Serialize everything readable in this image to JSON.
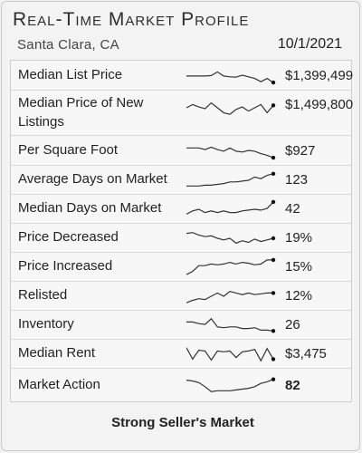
{
  "header": {
    "title": "Real-Time Market Profile",
    "location": "Santa Clara, CA",
    "date": "10/1/2021"
  },
  "rows": [
    {
      "label": "Median List Price",
      "value": "$1,399,499",
      "trend": [
        0.55,
        0.55,
        0.55,
        0.55,
        0.52,
        0.3,
        0.55,
        0.6,
        0.62,
        0.5,
        0.6,
        0.7,
        0.9,
        0.7,
        0.95
      ]
    },
    {
      "label": "Median Price of New Listings",
      "value": "$1,499,800",
      "trend": [
        0.5,
        0.3,
        0.45,
        0.55,
        0.2,
        0.5,
        0.8,
        0.9,
        0.6,
        0.45,
        0.7,
        0.5,
        0.3,
        0.8,
        0.35
      ]
    },
    {
      "label": "Per Square Foot",
      "value": "$927",
      "trend": [
        0.35,
        0.35,
        0.35,
        0.45,
        0.3,
        0.45,
        0.55,
        0.35,
        0.55,
        0.6,
        0.5,
        0.55,
        0.7,
        0.8,
        0.95
      ]
    },
    {
      "label": "Average Days on Market",
      "value": "123",
      "trend": [
        0.85,
        0.85,
        0.85,
        0.8,
        0.8,
        0.75,
        0.7,
        0.6,
        0.6,
        0.55,
        0.5,
        0.3,
        0.4,
        0.2,
        0.1
      ]
    },
    {
      "label": "Median Days on Market",
      "value": "42",
      "trend": [
        0.8,
        0.6,
        0.5,
        0.7,
        0.6,
        0.7,
        0.6,
        0.7,
        0.7,
        0.6,
        0.55,
        0.5,
        0.55,
        0.45,
        0.05
      ]
    },
    {
      "label": "Price Decreased",
      "value": "19%",
      "trend": [
        0.2,
        0.15,
        0.3,
        0.4,
        0.35,
        0.5,
        0.6,
        0.5,
        0.8,
        0.65,
        0.75,
        0.55,
        0.7,
        0.6,
        0.5
      ]
    },
    {
      "label": "Price Increased",
      "value": "15%",
      "trend": [
        0.95,
        0.75,
        0.4,
        0.4,
        0.3,
        0.35,
        0.3,
        0.2,
        0.3,
        0.2,
        0.25,
        0.35,
        0.3,
        0.05,
        0.05
      ]
    },
    {
      "label": "Relisted",
      "value": "12%",
      "trend": [
        0.9,
        0.75,
        0.65,
        0.7,
        0.5,
        0.3,
        0.5,
        0.2,
        0.3,
        0.4,
        0.3,
        0.4,
        0.35,
        0.3,
        0.3
      ]
    },
    {
      "label": "Inventory",
      "value": "26",
      "trend": [
        0.3,
        0.3,
        0.4,
        0.45,
        0.1,
        0.6,
        0.65,
        0.6,
        0.6,
        0.7,
        0.7,
        0.65,
        0.8,
        0.8,
        0.85
      ]
    },
    {
      "label": "Median Rent",
      "value": "$3,475",
      "trend": [
        0.1,
        0.8,
        0.25,
        0.3,
        0.85,
        0.3,
        0.35,
        0.3,
        0.7,
        0.35,
        0.3,
        0.2,
        0.9,
        0.15,
        0.8
      ]
    },
    {
      "label": "Market Action",
      "value": "82",
      "trend": [
        0.2,
        0.25,
        0.35,
        0.6,
        0.9,
        0.85,
        0.85,
        0.85,
        0.8,
        0.75,
        0.7,
        0.6,
        0.4,
        0.3,
        0.15
      ]
    }
  ],
  "footer": {
    "label": "Strong Seller's Market"
  },
  "colors": {
    "line": "#333333",
    "dot": "#111111"
  }
}
